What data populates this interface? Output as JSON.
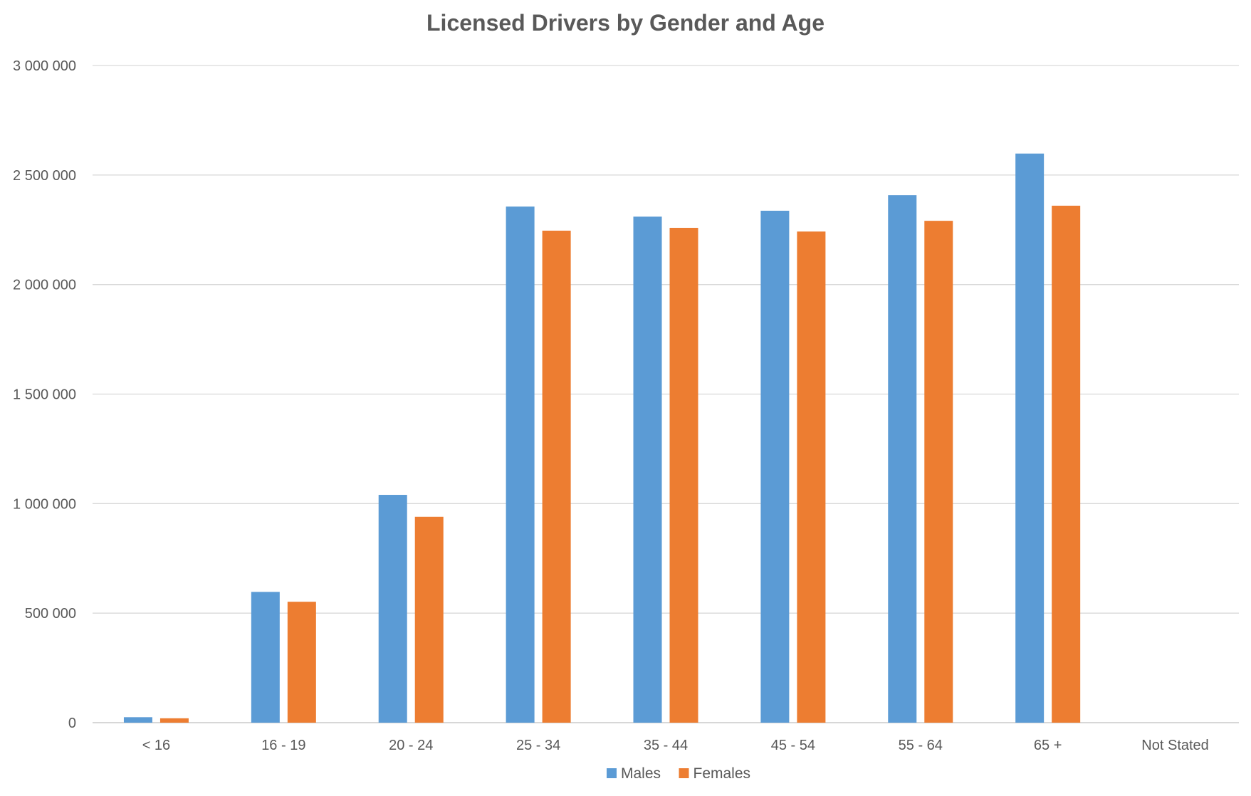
{
  "chart_data": {
    "type": "bar",
    "title": "Licensed Drivers by Gender and Age",
    "xlabel": "",
    "ylabel": "",
    "categories": [
      "< 16",
      "16 - 19",
      "20 - 24",
      "25 - 34",
      "35 - 44",
      "45 - 54",
      "55 - 64",
      "65 +",
      "Not Stated"
    ],
    "series": [
      {
        "name": "Males",
        "color": "#5B9BD5",
        "values": [
          25000,
          597000,
          1040000,
          2356000,
          2310000,
          2337000,
          2408000,
          2598000,
          0
        ]
      },
      {
        "name": "Females",
        "color": "#ED7D31",
        "values": [
          20000,
          552000,
          940000,
          2246000,
          2259000,
          2242000,
          2291000,
          2360000,
          0
        ]
      }
    ],
    "ylim": [
      0,
      3000000
    ],
    "yticks": [
      0,
      500000,
      1000000,
      1500000,
      2000000,
      2500000,
      3000000
    ],
    "ytick_labels": [
      "0",
      "500 000",
      "1 000 000",
      "1 500 000",
      "2 000 000",
      "2 500 000",
      "3 000 000"
    ],
    "grid": true,
    "legend_position": "bottom"
  }
}
